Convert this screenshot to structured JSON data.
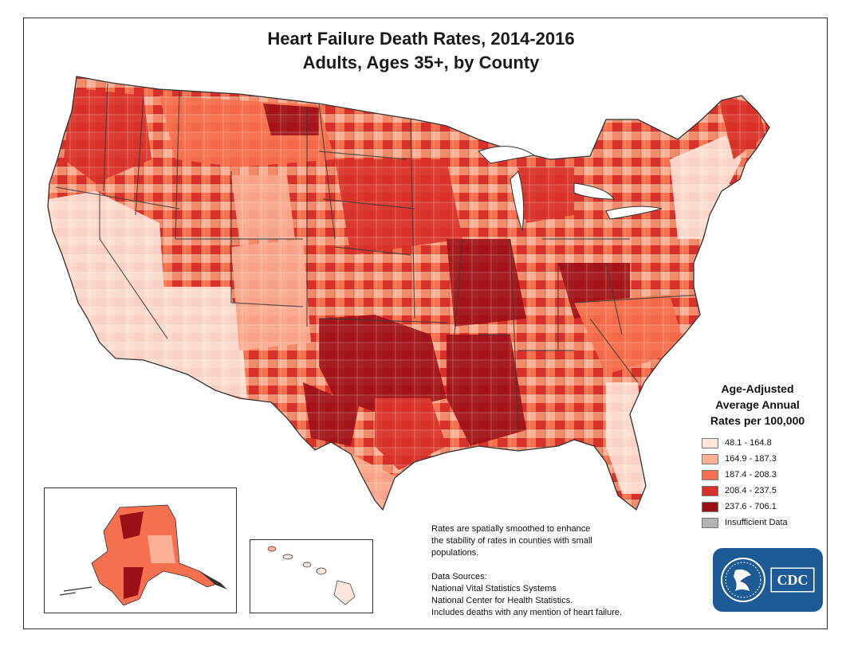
{
  "title_line1": "Heart Failure Death Rates, 2014-2016",
  "title_line2": "Adults, Ages 35+, by County",
  "legend": {
    "title_lines": [
      "Age-Adjusted",
      "Average Annual",
      "Rates per 100,000"
    ],
    "items": [
      {
        "label": "48.1 - 164.8",
        "color": "#fde6dc"
      },
      {
        "label": "164.9 - 187.3",
        "color": "#fbb096"
      },
      {
        "label": "187.4 - 208.3",
        "color": "#f5704e"
      },
      {
        "label": "208.4 - 237.5",
        "color": "#d8302a"
      },
      {
        "label": "237.6 - 706.1",
        "color": "#9b0f16"
      },
      {
        "label": "Insufficient Data",
        "color": "#b3b3b3"
      }
    ]
  },
  "notes": {
    "smoothing": [
      "Rates are spatially smoothed to enhance",
      "the stability of rates in counties with small",
      "populations."
    ],
    "sources_heading": "Data Sources:",
    "sources": [
      "National Vital Statistics Systems",
      "National Center for Health Statistics.",
      "Includes deaths with any mention of heart failure."
    ]
  },
  "logo": {
    "text": "CDC"
  },
  "colors": {
    "border": "#333333",
    "state_line": "#3a3a3a",
    "logo_blue": "#1e5a96"
  }
}
